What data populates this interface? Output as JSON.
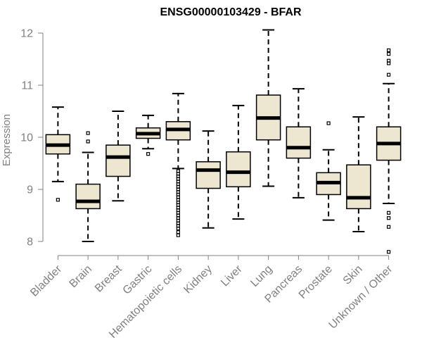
{
  "chart_data": {
    "type": "boxplot",
    "title": "ENSG00000103429 - BFAR",
    "xlabel": "",
    "ylabel": "Expression",
    "ylim": [
      8,
      12
    ],
    "yticks": [
      8,
      9,
      10,
      11,
      12
    ],
    "categories": [
      "Bladder",
      "Brain",
      "Breast",
      "Gastric",
      "Hematopoietic cells",
      "Kidney",
      "Liver",
      "Lung",
      "Pancreas",
      "Prostate",
      "Skin",
      "Unknown / Other"
    ],
    "boxes": [
      {
        "name": "Bladder",
        "whisker_low": 9.15,
        "q1": 9.68,
        "median": 9.85,
        "q3": 10.05,
        "whisker_high": 10.58,
        "outliers": [
          8.8
        ]
      },
      {
        "name": "Brain",
        "whisker_low": 8.0,
        "q1": 8.63,
        "median": 8.77,
        "q3": 9.1,
        "whisker_high": 9.71,
        "outliers": [
          9.92,
          10.08
        ]
      },
      {
        "name": "Breast",
        "whisker_low": 8.78,
        "q1": 9.25,
        "median": 9.62,
        "q3": 9.85,
        "whisker_high": 10.5,
        "outliers": []
      },
      {
        "name": "Gastric",
        "whisker_low": 9.78,
        "q1": 9.98,
        "median": 10.07,
        "q3": 10.18,
        "whisker_high": 10.42,
        "outliers": [
          9.68
        ]
      },
      {
        "name": "Hematopoietic cells",
        "whisker_low": 9.4,
        "q1": 9.95,
        "median": 10.15,
        "q3": 10.3,
        "whisker_high": 10.84,
        "outliers": [
          8.12,
          8.18,
          8.25,
          8.3,
          8.35,
          8.4,
          8.45,
          8.5,
          8.55,
          8.6,
          8.65,
          8.7,
          8.75,
          8.8,
          8.85,
          8.9,
          8.95,
          9.0,
          9.05,
          9.1,
          9.15,
          9.2,
          9.25,
          9.3,
          9.35
        ]
      },
      {
        "name": "Kidney",
        "whisker_low": 8.26,
        "q1": 9.02,
        "median": 9.37,
        "q3": 9.53,
        "whisker_high": 10.12,
        "outliers": []
      },
      {
        "name": "Liver",
        "whisker_low": 8.43,
        "q1": 9.05,
        "median": 9.33,
        "q3": 9.72,
        "whisker_high": 10.61,
        "outliers": []
      },
      {
        "name": "Lung",
        "whisker_low": 9.06,
        "q1": 9.95,
        "median": 10.37,
        "q3": 10.81,
        "whisker_high": 12.06,
        "outliers": []
      },
      {
        "name": "Pancreas",
        "whisker_low": 8.84,
        "q1": 9.6,
        "median": 9.8,
        "q3": 10.2,
        "whisker_high": 10.93,
        "outliers": []
      },
      {
        "name": "Prostate",
        "whisker_low": 8.41,
        "q1": 8.9,
        "median": 9.13,
        "q3": 9.32,
        "whisker_high": 9.76,
        "outliers": [
          10.27
        ]
      },
      {
        "name": "Skin",
        "whisker_low": 8.19,
        "q1": 8.63,
        "median": 8.84,
        "q3": 9.47,
        "whisker_high": 10.39,
        "outliers": []
      },
      {
        "name": "Unknown / Other",
        "whisker_low": 8.73,
        "q1": 9.56,
        "median": 9.88,
        "q3": 10.2,
        "whisker_high": 11.03,
        "outliers": [
          7.8,
          8.28,
          8.45,
          8.55,
          11.2,
          11.42,
          11.47,
          11.6,
          11.67
        ]
      }
    ],
    "box_fill": "#ede6d0",
    "box_stroke": "#000000",
    "median_color": "#000000",
    "axis_color": "#808080"
  }
}
